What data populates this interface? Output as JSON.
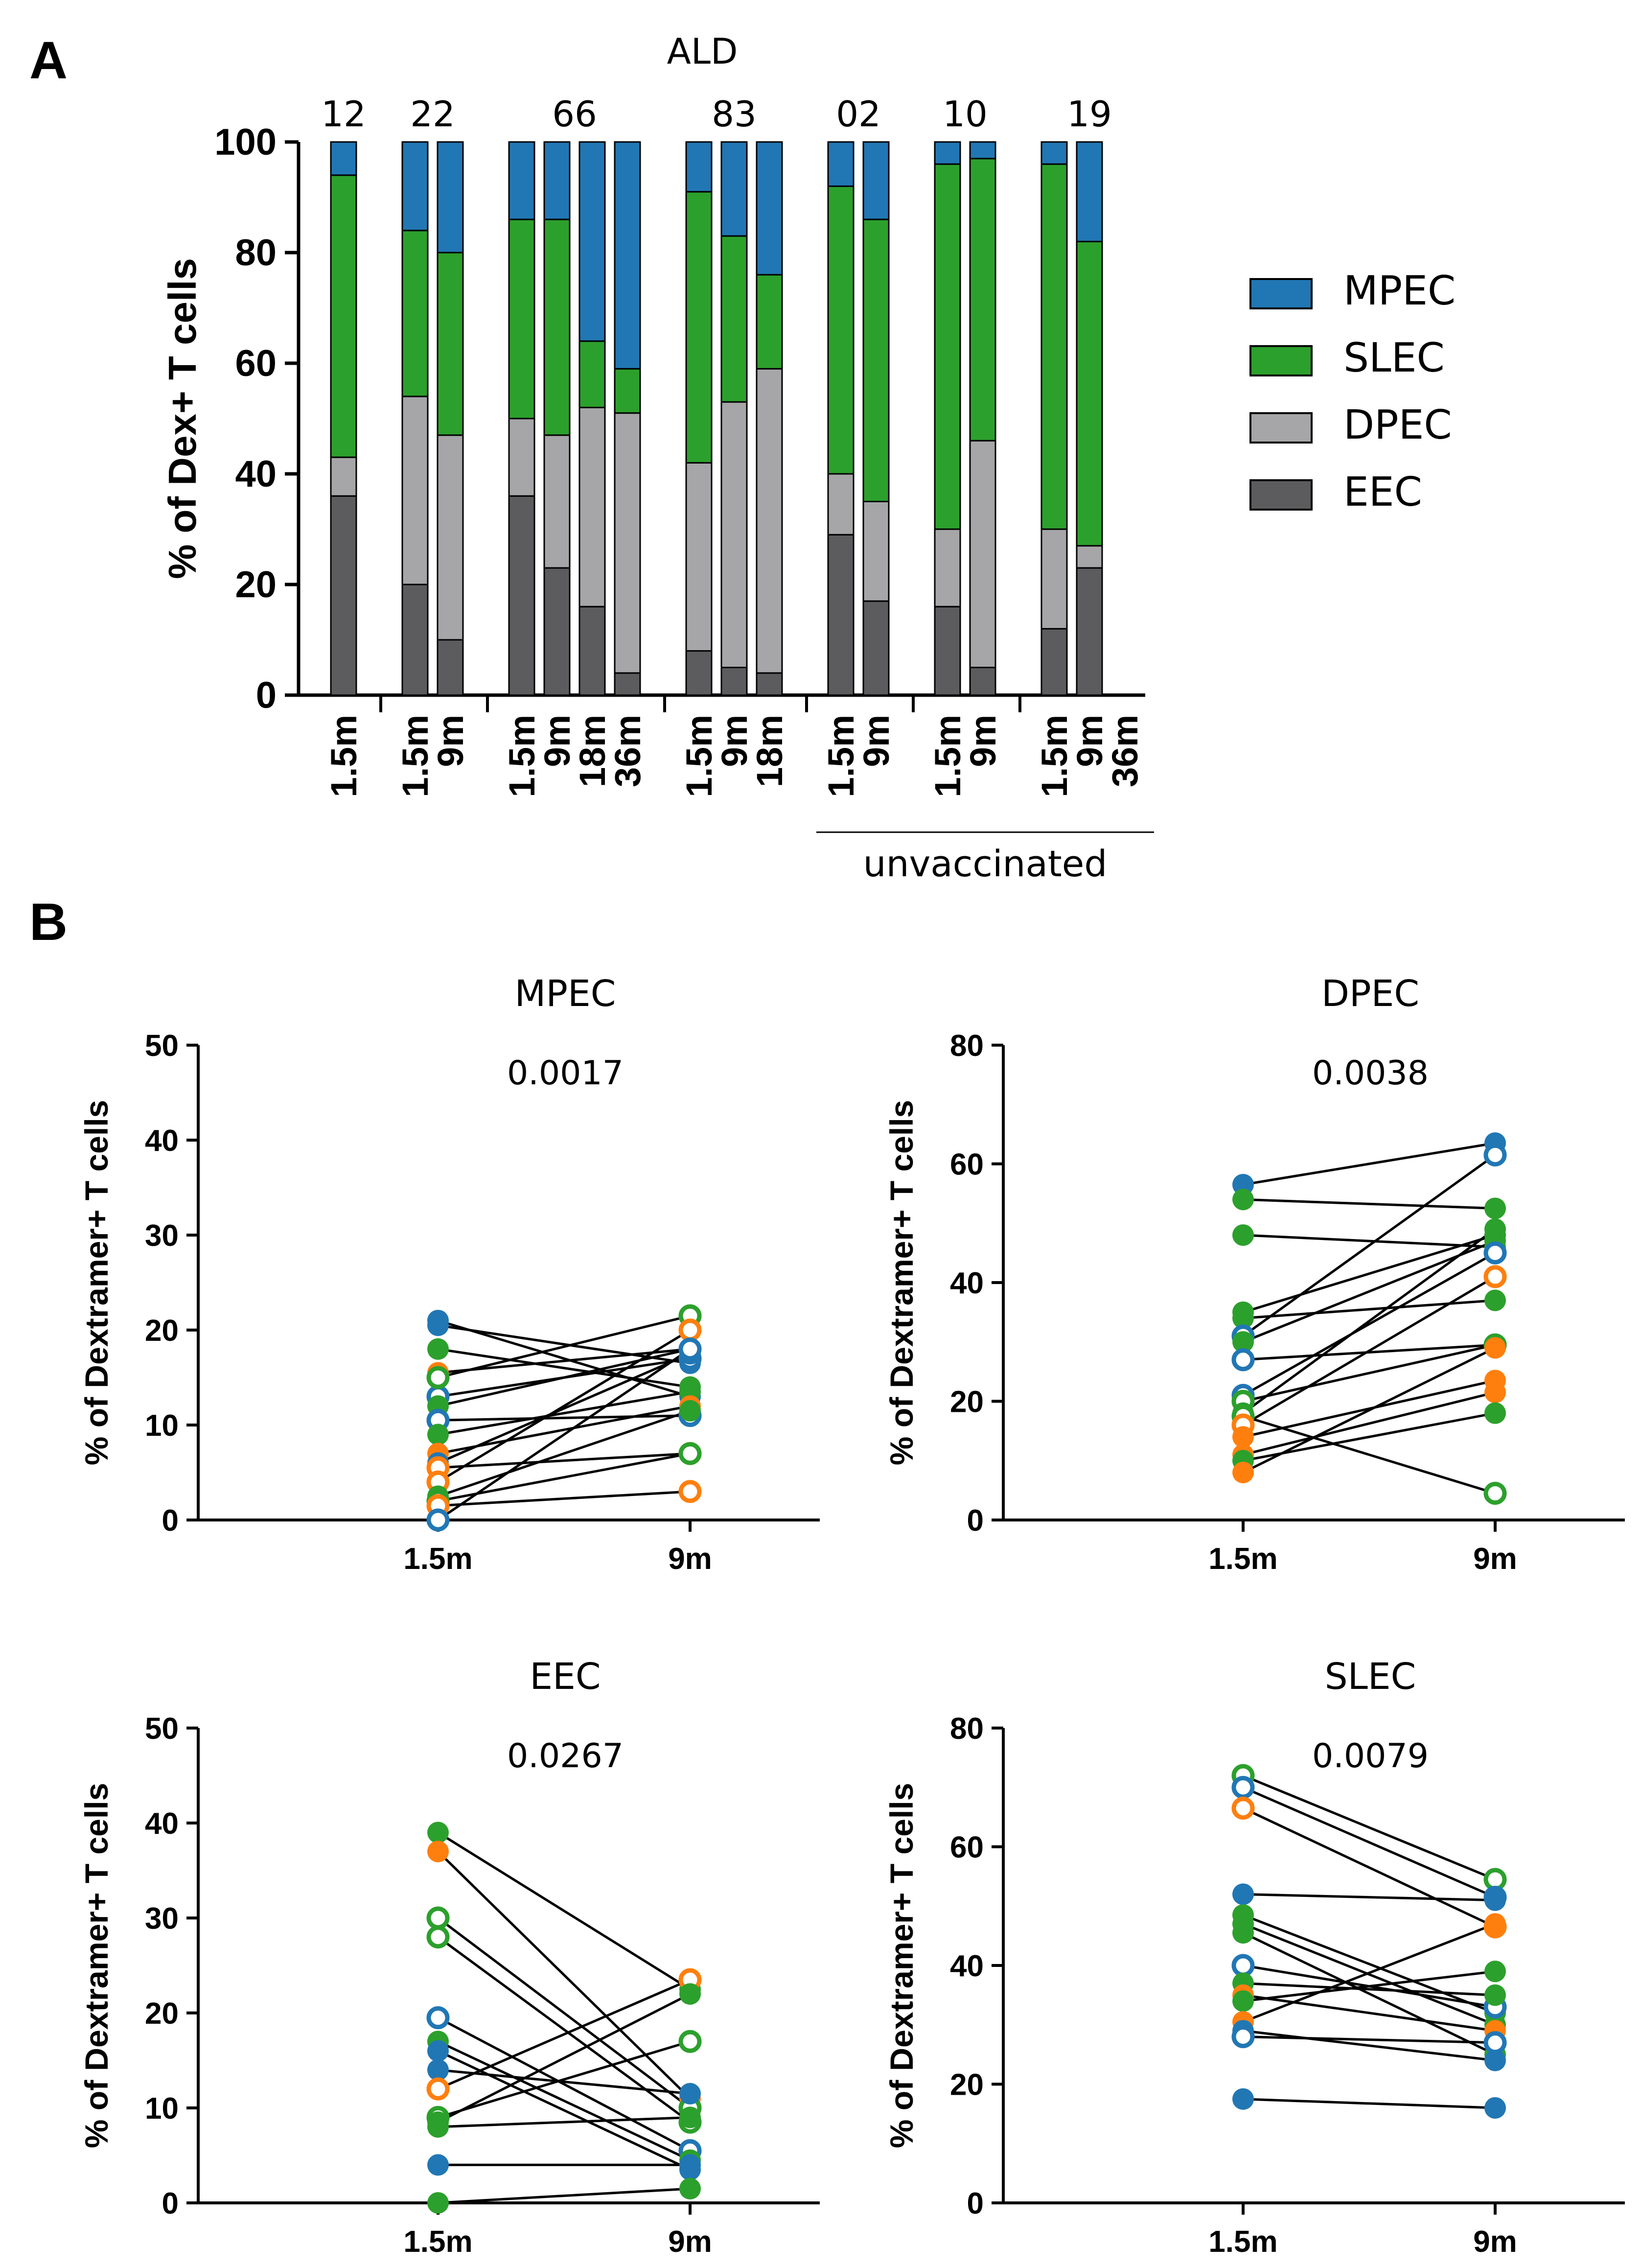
{
  "panelA_letter": "A",
  "panelB_letter": "B",
  "colors": {
    "MPEC": "#2177b4",
    "SLEC": "#2ca02c",
    "DPEC": "#a6a6a8",
    "EEC": "#5c5c5e",
    "orange": "#ff7f0e"
  },
  "chart_data": [
    {
      "type": "bar",
      "subtype": "stacked-100",
      "title": "ALD",
      "ylabel": "% of Dex+ T cells",
      "ylim": [
        0,
        100
      ],
      "yticks": [
        "0",
        "20",
        "40",
        "60",
        "80",
        "100"
      ],
      "legend": [
        "MPEC",
        "SLEC",
        "DPEC",
        "EEC"
      ],
      "legend_position": "right",
      "group_bracket_label": "unvaccinated",
      "groups": [
        {
          "label": "12",
          "bars": [
            {
              "x": "1.5m",
              "EEC": 36,
              "DPEC": 7,
              "SLEC": 51,
              "MPEC": 6
            }
          ]
        },
        {
          "label": "22",
          "bars": [
            {
              "x": "1.5m",
              "EEC": 20,
              "DPEC": 34,
              "SLEC": 30,
              "MPEC": 16
            },
            {
              "x": "9m",
              "EEC": 10,
              "DPEC": 37,
              "SLEC": 33,
              "MPEC": 20
            }
          ]
        },
        {
          "label": "66",
          "bars": [
            {
              "x": "1.5m",
              "EEC": 36,
              "DPEC": 14,
              "SLEC": 36,
              "MPEC": 14
            },
            {
              "x": "9m",
              "EEC": 23,
              "DPEC": 24,
              "SLEC": 39,
              "MPEC": 14
            },
            {
              "x": "18m",
              "EEC": 16,
              "DPEC": 36,
              "SLEC": 12,
              "MPEC": 36
            },
            {
              "x": "36m",
              "EEC": 4,
              "DPEC": 47,
              "SLEC": 8,
              "MPEC": 41
            }
          ]
        },
        {
          "label": "83",
          "bars": [
            {
              "x": "1.5m",
              "EEC": 8,
              "DPEC": 34,
              "SLEC": 49,
              "MPEC": 9
            },
            {
              "x": "9m",
              "EEC": 5,
              "DPEC": 48,
              "SLEC": 30,
              "MPEC": 17
            },
            {
              "x": "18m",
              "EEC": 4,
              "DPEC": 55,
              "SLEC": 17,
              "MPEC": 24
            }
          ]
        },
        {
          "label": "02",
          "bars": [
            {
              "x": "1.5m",
              "EEC": 29,
              "DPEC": 11,
              "SLEC": 52,
              "MPEC": 8
            },
            {
              "x": "9m",
              "EEC": 17,
              "DPEC": 18,
              "SLEC": 51,
              "MPEC": 14
            }
          ]
        },
        {
          "label": "10",
          "bars": [
            {
              "x": "1.5m",
              "EEC": 16,
              "DPEC": 14,
              "SLEC": 66,
              "MPEC": 4
            },
            {
              "x": "9m",
              "EEC": 5,
              "DPEC": 41,
              "SLEC": 51,
              "MPEC": 3
            }
          ]
        },
        {
          "label": "19",
          "bars": [
            {
              "x": "1.5m",
              "EEC": 12,
              "DPEC": 18,
              "SLEC": 66,
              "MPEC": 4
            },
            {
              "x": "9m",
              "EEC": 23,
              "DPEC": 4,
              "SLEC": 55,
              "MPEC": 18
            },
            {
              "x": "36m",
              "EEC": 0,
              "DPEC": 0,
              "SLEC": 0,
              "MPEC": 0
            }
          ]
        }
      ]
    },
    {
      "type": "scatter",
      "subtype": "paired",
      "title": "MPEC",
      "p_value": "0.0017",
      "ylabel": "% of Dextramer+ T cells",
      "x_categories": [
        "1.5m",
        "9m"
      ],
      "ylim": [
        0,
        50
      ],
      "yticks": [
        "0",
        "10",
        "20",
        "30",
        "40",
        "50"
      ],
      "pairs": [
        {
          "y": [
            21,
            13
          ],
          "color": "MPEC",
          "filled": true
        },
        {
          "y": [
            20.5,
            16.5
          ],
          "color": "MPEC",
          "filled": true
        },
        {
          "y": [
            13,
            17
          ],
          "color": "MPEC",
          "filled": false
        },
        {
          "y": [
            18,
            14
          ],
          "color": "SLEC",
          "filled": true
        },
        {
          "y": [
            15.5,
            18
          ],
          "color": "orange",
          "filled": true
        },
        {
          "y": [
            15,
            21.5
          ],
          "color": "SLEC",
          "filled": false
        },
        {
          "y": [
            12,
            18
          ],
          "color": "SLEC",
          "filled": true
        },
        {
          "y": [
            10.5,
            11
          ],
          "color": "MPEC",
          "filled": false
        },
        {
          "y": [
            9,
            13.5
          ],
          "color": "SLEC",
          "filled": true
        },
        {
          "y": [
            7,
            12
          ],
          "color": "orange",
          "filled": true
        },
        {
          "y": [
            6,
            17.5
          ],
          "color": "MPEC",
          "filled": true
        },
        {
          "y": [
            5.5,
            7
          ],
          "color": "orange",
          "filled": false
        },
        {
          "y": [
            4,
            20
          ],
          "color": "orange",
          "filled": false
        },
        {
          "y": [
            2.5,
            11.5
          ],
          "color": "SLEC",
          "filled": true
        },
        {
          "y": [
            2,
            7
          ],
          "color": "SLEC",
          "filled": false
        },
        {
          "y": [
            1.5,
            3
          ],
          "color": "orange",
          "filled": false
        },
        {
          "y": [
            0,
            18
          ],
          "color": "MPEC",
          "filled": false
        }
      ]
    },
    {
      "type": "scatter",
      "subtype": "paired",
      "title": "DPEC",
      "p_value": "0.0038",
      "ylabel": "% of Dextramer+ T cells",
      "x_categories": [
        "1.5m",
        "9m"
      ],
      "ylim": [
        0,
        80
      ],
      "yticks": [
        "0",
        "20",
        "40",
        "60",
        "80"
      ],
      "pairs": [
        {
          "y": [
            56.5,
            63.5
          ],
          "color": "MPEC",
          "filled": true
        },
        {
          "y": [
            54,
            52.5
          ],
          "color": "SLEC",
          "filled": true
        },
        {
          "y": [
            48,
            46
          ],
          "color": "SLEC",
          "filled": true
        },
        {
          "y": [
            35,
            48
          ],
          "color": "SLEC",
          "filled": true
        },
        {
          "y": [
            34,
            37
          ],
          "color": "SLEC",
          "filled": true
        },
        {
          "y": [
            31,
            61.5
          ],
          "color": "MPEC",
          "filled": false
        },
        {
          "y": [
            30,
            47
          ],
          "color": "SLEC",
          "filled": true
        },
        {
          "y": [
            27,
            29.5
          ],
          "color": "MPEC",
          "filled": false
        },
        {
          "y": [
            21,
            45
          ],
          "color": "MPEC",
          "filled": false
        },
        {
          "y": [
            20,
            29.5
          ],
          "color": "SLEC",
          "filled": false
        },
        {
          "y": [
            18,
            49
          ],
          "color": "SLEC",
          "filled": true
        },
        {
          "y": [
            17.5,
            4.5
          ],
          "color": "SLEC",
          "filled": false
        },
        {
          "y": [
            16,
            41
          ],
          "color": "orange",
          "filled": false
        },
        {
          "y": [
            14,
            23.5
          ],
          "color": "orange",
          "filled": true
        },
        {
          "y": [
            11,
            21.5
          ],
          "color": "orange",
          "filled": true
        },
        {
          "y": [
            10,
            18
          ],
          "color": "SLEC",
          "filled": true
        },
        {
          "y": [
            8,
            29
          ],
          "color": "orange",
          "filled": true
        }
      ]
    },
    {
      "type": "scatter",
      "subtype": "paired",
      "title": "EEC",
      "p_value": "0.0267",
      "ylabel": "% of Dextramer+ T cells",
      "x_categories": [
        "1.5m",
        "9m"
      ],
      "ylim": [
        0,
        50
      ],
      "yticks": [
        "0",
        "10",
        "20",
        "30",
        "40",
        "50"
      ],
      "pairs": [
        {
          "y": [
            39,
            22.5
          ],
          "color": "SLEC",
          "filled": true
        },
        {
          "y": [
            37,
            11
          ],
          "color": "orange",
          "filled": true
        },
        {
          "y": [
            30,
            10
          ],
          "color": "SLEC",
          "filled": false
        },
        {
          "y": [
            28,
            8.5
          ],
          "color": "SLEC",
          "filled": false
        },
        {
          "y": [
            19.5,
            5.5
          ],
          "color": "MPEC",
          "filled": false
        },
        {
          "y": [
            17,
            4.5
          ],
          "color": "SLEC",
          "filled": true
        },
        {
          "y": [
            16,
            3.5
          ],
          "color": "MPEC",
          "filled": true
        },
        {
          "y": [
            14,
            11.5
          ],
          "color": "MPEC",
          "filled": true
        },
        {
          "y": [
            12,
            23.5
          ],
          "color": "orange",
          "filled": false
        },
        {
          "y": [
            9,
            17
          ],
          "color": "SLEC",
          "filled": false
        },
        {
          "y": [
            8.5,
            22
          ],
          "color": "SLEC",
          "filled": true
        },
        {
          "y": [
            8,
            9
          ],
          "color": "SLEC",
          "filled": true
        },
        {
          "y": [
            4,
            4
          ],
          "color": "MPEC",
          "filled": true
        },
        {
          "y": [
            0,
            1.5
          ],
          "color": "SLEC",
          "filled": true
        }
      ]
    },
    {
      "type": "scatter",
      "subtype": "paired",
      "title": "SLEC",
      "p_value": "0.0079",
      "ylabel": "% of Dextramer+ T cells",
      "x_categories": [
        "1.5m",
        "9m"
      ],
      "ylim": [
        0,
        80
      ],
      "yticks": [
        "0",
        "20",
        "40",
        "60",
        "80"
      ],
      "pairs": [
        {
          "y": [
            72,
            54.5
          ],
          "color": "SLEC",
          "filled": false
        },
        {
          "y": [
            70,
            51.5
          ],
          "color": "MPEC",
          "filled": false
        },
        {
          "y": [
            66.5,
            46.5
          ],
          "color": "orange",
          "filled": false
        },
        {
          "y": [
            52,
            51
          ],
          "color": "MPEC",
          "filled": true
        },
        {
          "y": [
            48.5,
            32
          ],
          "color": "SLEC",
          "filled": true
        },
        {
          "y": [
            47,
            30
          ],
          "color": "SLEC",
          "filled": true
        },
        {
          "y": [
            45.5,
            25
          ],
          "color": "SLEC",
          "filled": true
        },
        {
          "y": [
            40,
            33
          ],
          "color": "MPEC",
          "filled": false
        },
        {
          "y": [
            37,
            35
          ],
          "color": "SLEC",
          "filled": true
        },
        {
          "y": [
            35,
            29
          ],
          "color": "orange",
          "filled": true
        },
        {
          "y": [
            34,
            39
          ],
          "color": "SLEC",
          "filled": true
        },
        {
          "y": [
            30.5,
            47
          ],
          "color": "orange",
          "filled": true
        },
        {
          "y": [
            29,
            24
          ],
          "color": "MPEC",
          "filled": true
        },
        {
          "y": [
            28,
            27
          ],
          "color": "MPEC",
          "filled": false
        },
        {
          "y": [
            17.5,
            16
          ],
          "color": "MPEC",
          "filled": true
        }
      ]
    }
  ]
}
